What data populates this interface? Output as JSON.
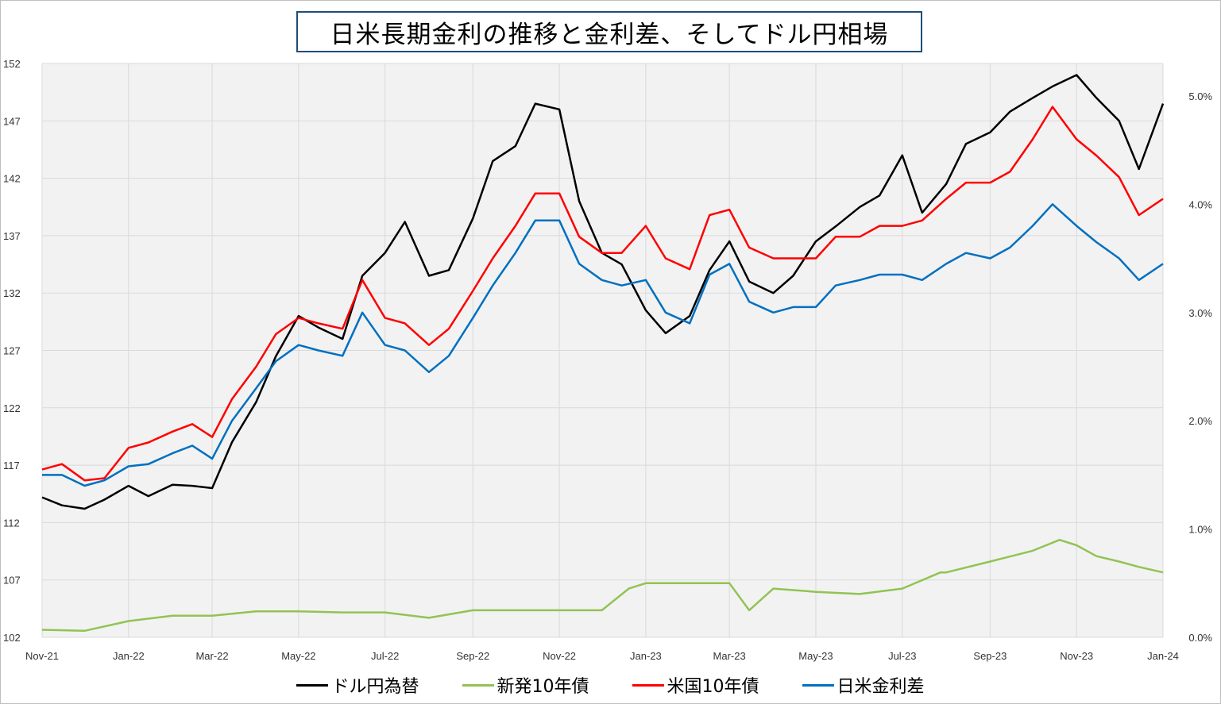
{
  "chart_data": {
    "type": "line",
    "title": "日米長期金利の推移と金利差、そしてドル円相場",
    "x_tick_labels": [
      "Nov-21",
      "Jan-22",
      "Mar-22",
      "May-22",
      "Jul-22",
      "Sep-22",
      "Nov-22",
      "Jan-23",
      "Mar-23",
      "May-23",
      "Jul-23",
      "Sep-23",
      "Nov-23",
      "Jan-24"
    ],
    "y_left": {
      "ticks": [
        "102",
        "107",
        "112",
        "117",
        "122",
        "127",
        "132",
        "137",
        "142",
        "147",
        "152"
      ],
      "ylim": [
        102,
        152
      ]
    },
    "y_right": {
      "ticks": [
        "0.0%",
        "1.0%",
        "2.0%",
        "3.0%",
        "4.0%",
        "5.0%"
      ],
      "ylim": [
        0,
        5.3
      ]
    },
    "grid": true,
    "legend_position": "bottom",
    "series": [
      {
        "name": "ドル円為替",
        "axis": "left",
        "color": "#000000",
        "x": [
          "2021-11-01",
          "2021-11-15",
          "2021-12-01",
          "2021-12-15",
          "2022-01-01",
          "2022-01-15",
          "2022-02-01",
          "2022-02-15",
          "2022-03-01",
          "2022-03-15",
          "2022-04-01",
          "2022-04-15",
          "2022-05-01",
          "2022-05-15",
          "2022-06-01",
          "2022-06-15",
          "2022-07-01",
          "2022-07-15",
          "2022-08-01",
          "2022-08-15",
          "2022-09-01",
          "2022-09-15",
          "2022-10-01",
          "2022-10-15",
          "2022-11-01",
          "2022-11-15",
          "2022-12-01",
          "2022-12-15",
          "2023-01-01",
          "2023-01-15",
          "2023-02-01",
          "2023-02-15",
          "2023-03-01",
          "2023-03-15",
          "2023-04-01",
          "2023-04-15",
          "2023-05-01",
          "2023-05-15",
          "2023-06-01",
          "2023-06-15",
          "2023-07-01",
          "2023-07-15",
          "2023-08-01",
          "2023-08-15",
          "2023-09-01",
          "2023-09-15",
          "2023-10-01",
          "2023-10-15",
          "2023-11-01",
          "2023-11-15",
          "2023-12-01",
          "2023-12-15",
          "2024-01-01"
        ],
        "values": [
          114.2,
          113.5,
          113.2,
          114.0,
          115.2,
          114.3,
          115.3,
          115.2,
          115.0,
          119.0,
          122.5,
          126.5,
          130.0,
          129.0,
          128.0,
          133.5,
          135.5,
          138.2,
          133.5,
          134.0,
          138.5,
          143.5,
          144.8,
          148.5,
          148.0,
          140.0,
          135.5,
          134.5,
          130.5,
          128.5,
          130.0,
          134.0,
          136.5,
          133.0,
          132.0,
          133.5,
          136.5,
          137.8,
          139.5,
          140.5,
          144.0,
          139.0,
          141.5,
          145.0,
          146.0,
          147.8,
          149.0,
          150.0,
          151.0,
          149.0,
          147.0,
          142.8,
          148.5
        ]
      },
      {
        "name": "新発10年債",
        "axis": "right",
        "color": "#92c353",
        "x": [
          "2021-11-01",
          "2021-12-01",
          "2022-01-01",
          "2022-02-01",
          "2022-03-01",
          "2022-04-01",
          "2022-05-01",
          "2022-06-01",
          "2022-07-01",
          "2022-08-01",
          "2022-09-01",
          "2022-10-01",
          "2022-11-01",
          "2022-12-01",
          "2022-12-20",
          "2023-01-01",
          "2023-02-01",
          "2023-03-01",
          "2023-03-15",
          "2023-04-01",
          "2023-05-01",
          "2023-06-01",
          "2023-07-01",
          "2023-07-28",
          "2023-08-01",
          "2023-09-01",
          "2023-10-01",
          "2023-10-20",
          "2023-11-01",
          "2023-11-15",
          "2023-12-01",
          "2023-12-15",
          "2024-01-01"
        ],
        "values": [
          0.07,
          0.06,
          0.15,
          0.2,
          0.2,
          0.24,
          0.24,
          0.23,
          0.23,
          0.18,
          0.25,
          0.25,
          0.25,
          0.25,
          0.45,
          0.5,
          0.5,
          0.5,
          0.25,
          0.45,
          0.42,
          0.4,
          0.45,
          0.6,
          0.6,
          0.7,
          0.8,
          0.9,
          0.85,
          0.75,
          0.7,
          0.65,
          0.6
        ]
      },
      {
        "name": "米国10年債",
        "axis": "right",
        "color": "#ff0000",
        "x": [
          "2021-11-01",
          "2021-11-15",
          "2021-12-01",
          "2021-12-15",
          "2022-01-01",
          "2022-01-15",
          "2022-02-01",
          "2022-02-15",
          "2022-03-01",
          "2022-03-15",
          "2022-04-01",
          "2022-04-15",
          "2022-05-01",
          "2022-05-15",
          "2022-06-01",
          "2022-06-15",
          "2022-07-01",
          "2022-07-15",
          "2022-08-01",
          "2022-08-15",
          "2022-09-01",
          "2022-09-15",
          "2022-10-01",
          "2022-10-15",
          "2022-11-01",
          "2022-11-15",
          "2022-12-01",
          "2022-12-15",
          "2023-01-01",
          "2023-01-15",
          "2023-02-01",
          "2023-02-15",
          "2023-03-01",
          "2023-03-15",
          "2023-04-01",
          "2023-04-15",
          "2023-05-01",
          "2023-05-15",
          "2023-06-01",
          "2023-06-15",
          "2023-07-01",
          "2023-07-15",
          "2023-08-01",
          "2023-08-15",
          "2023-09-01",
          "2023-09-15",
          "2023-10-01",
          "2023-10-15",
          "2023-11-01",
          "2023-11-15",
          "2023-12-01",
          "2023-12-15",
          "2024-01-01"
        ],
        "values": [
          1.55,
          1.6,
          1.45,
          1.47,
          1.75,
          1.8,
          1.9,
          1.97,
          1.85,
          2.2,
          2.5,
          2.8,
          2.95,
          2.9,
          2.85,
          3.3,
          2.95,
          2.9,
          2.7,
          2.85,
          3.2,
          3.5,
          3.8,
          4.1,
          4.1,
          3.7,
          3.55,
          3.55,
          3.8,
          3.5,
          3.4,
          3.9,
          3.95,
          3.6,
          3.5,
          3.5,
          3.5,
          3.7,
          3.7,
          3.8,
          3.8,
          3.85,
          4.05,
          4.2,
          4.2,
          4.3,
          4.6,
          4.9,
          4.6,
          4.45,
          4.25,
          3.9,
          4.05
        ]
      },
      {
        "name": "日米金利差",
        "axis": "right",
        "color": "#0070c0",
        "x": [
          "2021-11-01",
          "2021-11-15",
          "2021-12-01",
          "2021-12-15",
          "2022-01-01",
          "2022-01-15",
          "2022-02-01",
          "2022-02-15",
          "2022-03-01",
          "2022-03-15",
          "2022-04-01",
          "2022-04-15",
          "2022-05-01",
          "2022-05-15",
          "2022-06-01",
          "2022-06-15",
          "2022-07-01",
          "2022-07-15",
          "2022-08-01",
          "2022-08-15",
          "2022-09-01",
          "2022-09-15",
          "2022-10-01",
          "2022-10-15",
          "2022-11-01",
          "2022-11-15",
          "2022-12-01",
          "2022-12-15",
          "2023-01-01",
          "2023-01-15",
          "2023-02-01",
          "2023-02-15",
          "2023-03-01",
          "2023-03-15",
          "2023-04-01",
          "2023-04-15",
          "2023-05-01",
          "2023-05-15",
          "2023-06-01",
          "2023-06-15",
          "2023-07-01",
          "2023-07-15",
          "2023-08-01",
          "2023-08-15",
          "2023-09-01",
          "2023-09-15",
          "2023-10-01",
          "2023-10-15",
          "2023-11-01",
          "2023-11-15",
          "2023-12-01",
          "2023-12-15",
          "2024-01-01"
        ],
        "values": [
          1.5,
          1.5,
          1.4,
          1.45,
          1.58,
          1.6,
          1.7,
          1.77,
          1.65,
          2.0,
          2.3,
          2.55,
          2.7,
          2.65,
          2.6,
          3.0,
          2.7,
          2.65,
          2.45,
          2.6,
          2.95,
          3.25,
          3.55,
          3.85,
          3.85,
          3.45,
          3.3,
          3.25,
          3.3,
          3.0,
          2.9,
          3.35,
          3.45,
          3.1,
          3.0,
          3.05,
          3.05,
          3.25,
          3.3,
          3.35,
          3.35,
          3.3,
          3.45,
          3.55,
          3.5,
          3.6,
          3.8,
          4.0,
          3.8,
          3.65,
          3.5,
          3.3,
          3.45
        ]
      }
    ]
  }
}
